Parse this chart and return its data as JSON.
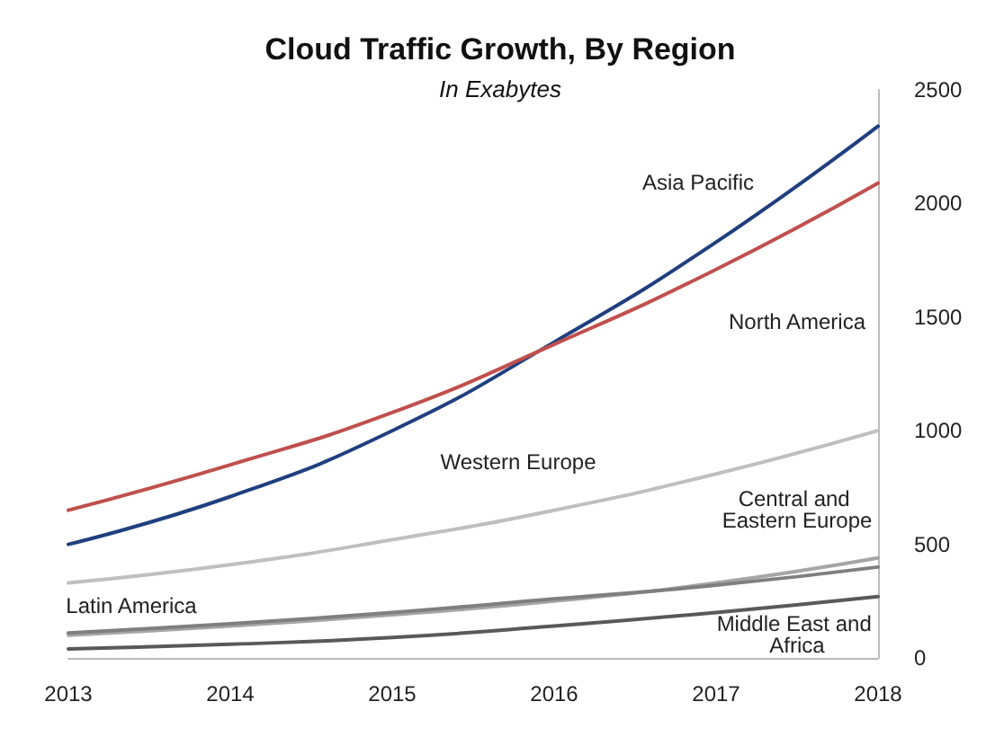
{
  "chart_data": {
    "type": "line",
    "title": "Cloud Traffic Growth, By Region",
    "subtitle": "In Exabytes",
    "categories": [
      "2013",
      "2014",
      "2015",
      "2016",
      "2017",
      "2018"
    ],
    "series": [
      {
        "name": "Asia Pacific",
        "color": "#1f3f7f",
        "values": [
          500,
          710,
          1000,
          1390,
          1830,
          2340
        ]
      },
      {
        "name": "North America",
        "color": "#c0504d",
        "values": [
          650,
          850,
          1080,
          1380,
          1710,
          2090
        ]
      },
      {
        "name": "Western Europe",
        "color": "#bfbfbf",
        "values": [
          330,
          410,
          520,
          650,
          810,
          1000
        ]
      },
      {
        "name": "Central and Eastern Europe",
        "color": "#a6a6a6",
        "values": [
          100,
          140,
          190,
          250,
          330,
          440
        ]
      },
      {
        "name": "Latin America",
        "color": "#7f7f7f",
        "values": [
          110,
          150,
          200,
          260,
          320,
          400
        ]
      },
      {
        "name": "Middle East and Africa",
        "color": "#595959",
        "values": [
          40,
          60,
          90,
          140,
          200,
          270
        ]
      }
    ],
    "ylim": [
      0,
      2500
    ],
    "yticks": [
      0,
      500,
      1000,
      1500,
      2000,
      2500
    ],
    "grid": false,
    "legend": false,
    "marker": "none",
    "line_style": "solid"
  }
}
